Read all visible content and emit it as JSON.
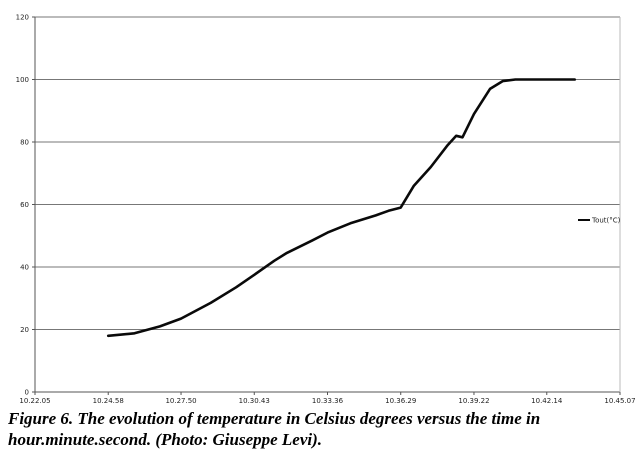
{
  "chart_data": {
    "type": "line",
    "series": [
      {
        "name": "Tout(°C)",
        "color": "#0a0a0a",
        "x": [
          "10.24.58",
          "10.26.00",
          "10.27.00",
          "10.27.50",
          "10.29.00",
          "10.30.00",
          "10.30.43",
          "10.31.30",
          "10.32.00",
          "10.33.00",
          "10.33.36",
          "10.34.30",
          "10.35.30",
          "10.36.00",
          "10.36.29",
          "10.37.00",
          "10.37.40",
          "10.38.20",
          "10.38.40",
          "10.38.55",
          "10.39.22",
          "10.40.00",
          "10.40.30",
          "10.41.00",
          "10.42.14",
          "10.43.20"
        ],
        "y": [
          18,
          18.8,
          21,
          23.5,
          28.5,
          33.5,
          37.5,
          42,
          44.5,
          48.5,
          51,
          54,
          56.5,
          58,
          59,
          66,
          72,
          79,
          82,
          81.5,
          89,
          97,
          99.5,
          100,
          100,
          100
        ]
      }
    ],
    "x_ticks": [
      "10.22.05",
      "10.24.58",
      "10.27.50",
      "10.30.43",
      "10.33.36",
      "10.36.29",
      "10.39.22",
      "10.42.14",
      "10.45.07"
    ],
    "y_ticks": [
      "0",
      "20",
      "40",
      "60",
      "80",
      "100",
      "120"
    ],
    "xlim": [
      "10.22.05",
      "10.45.07"
    ],
    "ylim": [
      0,
      120
    ],
    "grid": "horizontal",
    "legend_position": "right",
    "caption": "Figure 6. The evolution of temperature in Celsius degrees versus the time in hour.minute.second. (Photo: Giuseppe Levi)."
  }
}
